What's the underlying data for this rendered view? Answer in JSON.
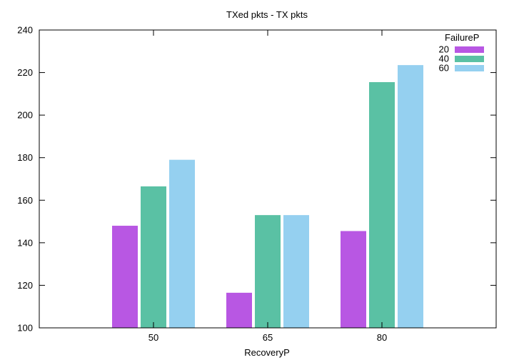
{
  "chart_data": {
    "type": "bar",
    "title": "TXed pkts - TX pkts",
    "xlabel": "RecoveryP",
    "ylabel": "",
    "categories": [
      "50",
      "65",
      "80"
    ],
    "ylim": [
      100,
      240
    ],
    "yticks": [
      100,
      120,
      140,
      160,
      180,
      200,
      220,
      240
    ],
    "grid": false,
    "legend": {
      "title": "FailureP",
      "placement": "top-right"
    },
    "series": [
      {
        "name": "20",
        "color": "#b857e3",
        "values": [
          148,
          116.5,
          145.5
        ]
      },
      {
        "name": "40",
        "color": "#5ac1a4",
        "values": [
          166.5,
          153,
          215.5
        ]
      },
      {
        "name": "60",
        "color": "#95d0f0",
        "values": [
          179,
          153,
          223.5
        ]
      }
    ]
  }
}
